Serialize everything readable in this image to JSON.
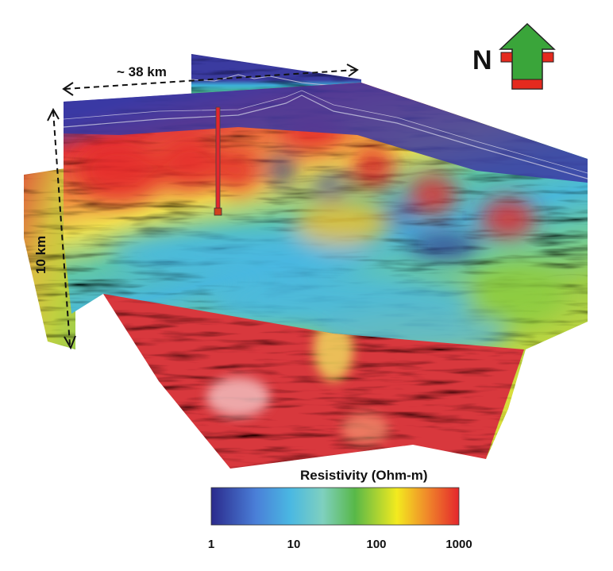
{
  "labels": {
    "width": "~ 38 km",
    "depth": "10 km",
    "north": "N"
  },
  "colorbar": {
    "title": "Resistivity (Ohm-m)",
    "ticks": [
      "1",
      "10",
      "100",
      "1000"
    ],
    "scale": "log",
    "range": [
      1,
      1000
    ],
    "colors": [
      "#2b2a8c",
      "#4aa6e0",
      "#7fd0cf",
      "#58b848",
      "#f3ea1f",
      "#f08a2a",
      "#e4262c"
    ]
  },
  "compass": {
    "colors": {
      "arrow": "#3aa53a",
      "marker": "#e42a1e"
    }
  }
}
